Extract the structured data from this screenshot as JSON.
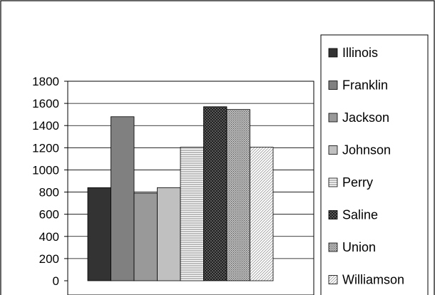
{
  "chart_data": {
    "type": "bar",
    "title": "",
    "xlabel": "",
    "ylabel": "",
    "categories": [
      "Illinois",
      "Franklin",
      "Jackson",
      "Johnson",
      "Perry",
      "Saline",
      "Union",
      "Williamson"
    ],
    "values": [
      840,
      1480,
      790,
      840,
      1205,
      1570,
      1545,
      1205
    ],
    "ylim": [
      0,
      1800
    ],
    "yticks": [
      "0",
      "200",
      "400",
      "600",
      "800",
      "1000",
      "1200",
      "1400",
      "1600",
      "1800"
    ],
    "grid": true,
    "legend": {
      "position": "right",
      "entries": [
        "Illinois",
        "Franklin",
        "Jackson",
        "Johnson",
        "Perry",
        "Saline",
        "Union",
        "Williamson"
      ]
    },
    "colors": [
      "#333333",
      "#808080",
      "#999999",
      "#c0c0c0",
      "#ffffff",
      "#4d4d4d",
      "#b3b3b3",
      "#ffffff"
    ],
    "patterns": [
      "solid",
      "solid",
      "solid",
      "solid",
      "horizontal-lines",
      "crosshatch",
      "dense-dots",
      "diagonal"
    ]
  }
}
